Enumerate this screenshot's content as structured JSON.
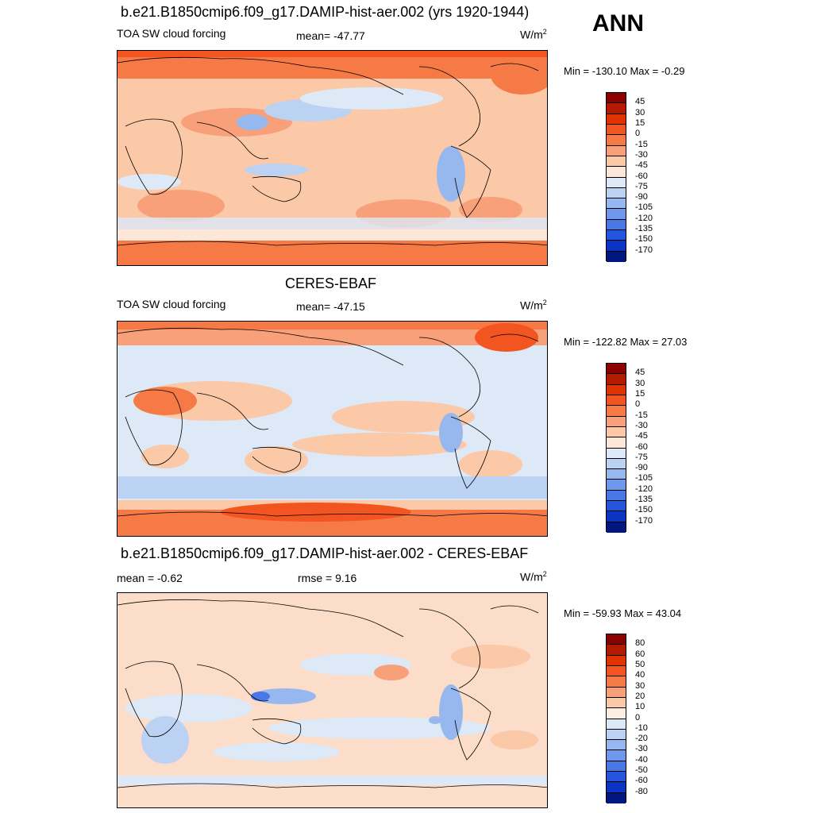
{
  "season": "ANN",
  "panels": [
    {
      "title": "b.e21.B1850cmip6.f09_g17.DAMIP-hist-aer.002 (yrs 1920-1944)",
      "left_label": "TOA SW cloud forcing",
      "mid_label": "mean= -47.77",
      "units": "W/m",
      "units_sup": "2",
      "minmax": "Min = -130.10 Max =  -0.29",
      "colorbar_key": "main"
    },
    {
      "title": "CERES-EBAF",
      "left_label": "TOA SW cloud forcing",
      "mid_label": "mean= -47.15",
      "units": "W/m",
      "units_sup": "2",
      "minmax": "Min = -122.82 Max =  27.03",
      "colorbar_key": "main"
    },
    {
      "title": "b.e21.B1850cmip6.f09_g17.DAMIP-hist-aer.002 - CERES-EBAF",
      "left_label": "mean =  -0.62",
      "mid_label": "rmse =   9.16",
      "units": "W/m",
      "units_sup": "2",
      "minmax": "Min = -59.93 Max =  43.04",
      "colorbar_key": "diff"
    }
  ],
  "colorbars": {
    "main": {
      "labels": [
        "45",
        "30",
        "15",
        "0",
        "-15",
        "-30",
        "-45",
        "-60",
        "-75",
        "-90",
        "-105",
        "-120",
        "-135",
        "-150",
        "-170"
      ],
      "colors": [
        "#8b0000",
        "#b31a00",
        "#e03300",
        "#f2551f",
        "#f57a45",
        "#f7a07a",
        "#fbc8a8",
        "#fde7d8",
        "#dde9f7",
        "#bcd2f2",
        "#97b8ef",
        "#6f98ec",
        "#4a77e6",
        "#2655dd",
        "#0b34c4",
        "#00177f"
      ]
    },
    "diff": {
      "labels": [
        "80",
        "60",
        "50",
        "40",
        "30",
        "20",
        "10",
        "0",
        "-10",
        "-20",
        "-30",
        "-40",
        "-50",
        "-60",
        "-80"
      ],
      "colors": [
        "#8b0000",
        "#b31a00",
        "#e03300",
        "#f2551f",
        "#f57a45",
        "#f7a07a",
        "#fbc8a8",
        "#fdeee4",
        "#dde9f7",
        "#bcd2f2",
        "#97b8ef",
        "#6f98ec",
        "#4a77e6",
        "#2655dd",
        "#0b34c4",
        "#00177f"
      ]
    }
  }
}
